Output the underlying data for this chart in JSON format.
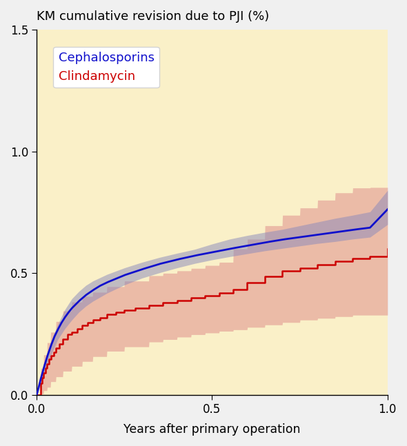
{
  "title": "KM cumulative revision due to PJI (%)",
  "xlabel": "Years after primary operation",
  "xlim": [
    0,
    1.0
  ],
  "ylim": [
    0,
    1.5
  ],
  "xticks": [
    0,
    0.5,
    1.0
  ],
  "yticks": [
    0,
    0.5,
    1.0,
    1.5
  ],
  "bg_color": "#FAF0C8",
  "fig_bg_color": "#F0F0F0",
  "blue_color": "#1010CC",
  "blue_fill_color": "#8888BB",
  "red_color": "#CC0000",
  "red_fill_color": "#DD8888",
  "legend_labels": [
    "Cephalosporins",
    "Clindamycin"
  ],
  "legend_colors": [
    "#1010CC",
    "#CC0000"
  ],
  "figsize": [
    5.9,
    6.47
  ],
  "dpi": 100,
  "blue_main": [
    [
      0.0,
      0.0
    ],
    [
      0.01,
      0.058
    ],
    [
      0.02,
      0.11
    ],
    [
      0.03,
      0.158
    ],
    [
      0.04,
      0.2
    ],
    [
      0.05,
      0.238
    ],
    [
      0.06,
      0.268
    ],
    [
      0.07,
      0.295
    ],
    [
      0.08,
      0.318
    ],
    [
      0.09,
      0.338
    ],
    [
      0.1,
      0.356
    ],
    [
      0.12,
      0.385
    ],
    [
      0.14,
      0.41
    ],
    [
      0.16,
      0.43
    ],
    [
      0.18,
      0.448
    ],
    [
      0.2,
      0.462
    ],
    [
      0.25,
      0.492
    ],
    [
      0.3,
      0.516
    ],
    [
      0.35,
      0.538
    ],
    [
      0.4,
      0.556
    ],
    [
      0.45,
      0.572
    ],
    [
      0.5,
      0.586
    ],
    [
      0.55,
      0.6
    ],
    [
      0.6,
      0.613
    ],
    [
      0.65,
      0.626
    ],
    [
      0.7,
      0.638
    ],
    [
      0.75,
      0.648
    ],
    [
      0.8,
      0.658
    ],
    [
      0.85,
      0.668
    ],
    [
      0.9,
      0.678
    ],
    [
      0.95,
      0.687
    ],
    [
      1.0,
      0.762
    ]
  ],
  "blue_upper": [
    [
      0.0,
      0.0
    ],
    [
      0.01,
      0.072
    ],
    [
      0.02,
      0.13
    ],
    [
      0.04,
      0.22
    ],
    [
      0.06,
      0.29
    ],
    [
      0.08,
      0.35
    ],
    [
      0.1,
      0.395
    ],
    [
      0.12,
      0.425
    ],
    [
      0.14,
      0.45
    ],
    [
      0.16,
      0.468
    ],
    [
      0.2,
      0.495
    ],
    [
      0.25,
      0.522
    ],
    [
      0.3,
      0.545
    ],
    [
      0.35,
      0.565
    ],
    [
      0.4,
      0.582
    ],
    [
      0.45,
      0.598
    ],
    [
      0.5,
      0.62
    ],
    [
      0.55,
      0.64
    ],
    [
      0.6,
      0.655
    ],
    [
      0.65,
      0.668
    ],
    [
      0.7,
      0.68
    ],
    [
      0.75,
      0.695
    ],
    [
      0.8,
      0.71
    ],
    [
      0.85,
      0.725
    ],
    [
      0.9,
      0.738
    ],
    [
      0.95,
      0.752
    ],
    [
      1.0,
      0.84
    ]
  ],
  "blue_lower": [
    [
      0.0,
      0.0
    ],
    [
      0.01,
      0.04
    ],
    [
      0.02,
      0.082
    ],
    [
      0.04,
      0.162
    ],
    [
      0.06,
      0.228
    ],
    [
      0.08,
      0.272
    ],
    [
      0.1,
      0.308
    ],
    [
      0.12,
      0.34
    ],
    [
      0.14,
      0.365
    ],
    [
      0.16,
      0.385
    ],
    [
      0.2,
      0.418
    ],
    [
      0.25,
      0.452
    ],
    [
      0.3,
      0.48
    ],
    [
      0.35,
      0.502
    ],
    [
      0.4,
      0.522
    ],
    [
      0.45,
      0.54
    ],
    [
      0.5,
      0.555
    ],
    [
      0.55,
      0.568
    ],
    [
      0.6,
      0.58
    ],
    [
      0.65,
      0.592
    ],
    [
      0.7,
      0.602
    ],
    [
      0.75,
      0.612
    ],
    [
      0.8,
      0.622
    ],
    [
      0.85,
      0.63
    ],
    [
      0.9,
      0.64
    ],
    [
      0.95,
      0.648
    ],
    [
      1.0,
      0.7
    ]
  ],
  "red_main": [
    [
      0.0,
      0.0
    ],
    [
      0.012,
      0.048
    ],
    [
      0.015,
      0.07
    ],
    [
      0.02,
      0.09
    ],
    [
      0.025,
      0.11
    ],
    [
      0.03,
      0.128
    ],
    [
      0.035,
      0.148
    ],
    [
      0.04,
      0.162
    ],
    [
      0.048,
      0.175
    ],
    [
      0.055,
      0.192
    ],
    [
      0.065,
      0.21
    ],
    [
      0.075,
      0.228
    ],
    [
      0.088,
      0.248
    ],
    [
      0.1,
      0.258
    ],
    [
      0.115,
      0.272
    ],
    [
      0.13,
      0.285
    ],
    [
      0.145,
      0.298
    ],
    [
      0.16,
      0.308
    ],
    [
      0.18,
      0.318
    ],
    [
      0.2,
      0.33
    ],
    [
      0.225,
      0.34
    ],
    [
      0.25,
      0.348
    ],
    [
      0.28,
      0.358
    ],
    [
      0.32,
      0.368
    ],
    [
      0.36,
      0.378
    ],
    [
      0.4,
      0.388
    ],
    [
      0.44,
      0.4
    ],
    [
      0.48,
      0.408
    ],
    [
      0.52,
      0.42
    ],
    [
      0.56,
      0.432
    ],
    [
      0.6,
      0.462
    ],
    [
      0.65,
      0.488
    ],
    [
      0.7,
      0.51
    ],
    [
      0.75,
      0.522
    ],
    [
      0.8,
      0.535
    ],
    [
      0.85,
      0.548
    ],
    [
      0.9,
      0.56
    ],
    [
      0.95,
      0.57
    ],
    [
      1.0,
      0.6
    ]
  ],
  "red_upper": [
    [
      0.0,
      0.0
    ],
    [
      0.012,
      0.11
    ],
    [
      0.02,
      0.165
    ],
    [
      0.03,
      0.215
    ],
    [
      0.04,
      0.258
    ],
    [
      0.055,
      0.302
    ],
    [
      0.075,
      0.345
    ],
    [
      0.1,
      0.382
    ],
    [
      0.13,
      0.405
    ],
    [
      0.16,
      0.422
    ],
    [
      0.2,
      0.445
    ],
    [
      0.25,
      0.468
    ],
    [
      0.32,
      0.49
    ],
    [
      0.36,
      0.5
    ],
    [
      0.4,
      0.51
    ],
    [
      0.44,
      0.52
    ],
    [
      0.48,
      0.532
    ],
    [
      0.52,
      0.545
    ],
    [
      0.56,
      0.6
    ],
    [
      0.6,
      0.64
    ],
    [
      0.65,
      0.695
    ],
    [
      0.7,
      0.738
    ],
    [
      0.75,
      0.768
    ],
    [
      0.8,
      0.8
    ],
    [
      0.85,
      0.83
    ],
    [
      0.9,
      0.85
    ],
    [
      0.95,
      0.852
    ],
    [
      1.0,
      0.852
    ]
  ],
  "red_lower": [
    [
      0.0,
      0.0
    ],
    [
      0.012,
      0.005
    ],
    [
      0.02,
      0.018
    ],
    [
      0.03,
      0.032
    ],
    [
      0.04,
      0.055
    ],
    [
      0.055,
      0.075
    ],
    [
      0.075,
      0.098
    ],
    [
      0.1,
      0.118
    ],
    [
      0.13,
      0.138
    ],
    [
      0.16,
      0.158
    ],
    [
      0.2,
      0.18
    ],
    [
      0.25,
      0.198
    ],
    [
      0.32,
      0.218
    ],
    [
      0.36,
      0.228
    ],
    [
      0.4,
      0.238
    ],
    [
      0.44,
      0.248
    ],
    [
      0.48,
      0.255
    ],
    [
      0.52,
      0.262
    ],
    [
      0.56,
      0.268
    ],
    [
      0.6,
      0.278
    ],
    [
      0.65,
      0.288
    ],
    [
      0.7,
      0.298
    ],
    [
      0.75,
      0.308
    ],
    [
      0.8,
      0.315
    ],
    [
      0.85,
      0.322
    ],
    [
      0.9,
      0.328
    ],
    [
      0.95,
      0.328
    ],
    [
      1.0,
      0.328
    ]
  ]
}
